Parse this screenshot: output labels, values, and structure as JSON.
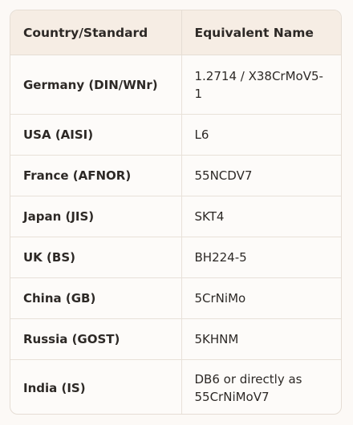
{
  "table": {
    "headers": [
      "Country/Standard",
      "Equivalent Name"
    ],
    "rows": [
      {
        "country": "Germany (DIN/WNr)",
        "name": "1.2714 / X38CrMoV5-1"
      },
      {
        "country": "USA (AISI)",
        "name": "L6"
      },
      {
        "country": "France (AFNOR)",
        "name": "55NCDV7"
      },
      {
        "country": "Japan (JIS)",
        "name": "SKT4"
      },
      {
        "country": "UK (BS)",
        "name": "BH224-5"
      },
      {
        "country": "China (GB)",
        "name": "5CrNiMo"
      },
      {
        "country": "Russia (GOST)",
        "name": "5KHNM"
      },
      {
        "country": "India (IS)",
        "name": "DB6 or directly as 55CrNiMoV7"
      }
    ]
  }
}
